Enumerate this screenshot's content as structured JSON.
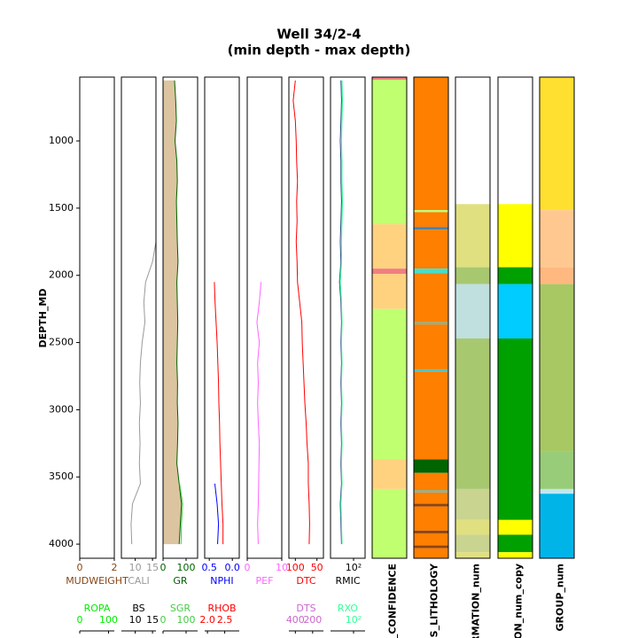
{
  "chart_data": {
    "type": "well_log",
    "title": "Well 34/2-4",
    "subtitle": "(min depth - max depth)",
    "ylabel": "DEPTH_MD",
    "ylim": [
      525,
      4105
    ],
    "yticks": [
      1000,
      1500,
      2000,
      2500,
      3000,
      3500,
      4000
    ],
    "depths": [
      550,
      700,
      850,
      1000,
      1150,
      1300,
      1450,
      1600,
      1750,
      1900,
      2050,
      2200,
      2350,
      2500,
      2650,
      2800,
      2950,
      3100,
      3250,
      3400,
      3550,
      3700,
      3850,
      4000
    ],
    "tracks": [
      {
        "curves": [
          {
            "name": "MUDWEIGHT",
            "color": "#8b4513",
            "xlim": [
              0,
              2
            ],
            "xticks": [
              0,
              2
            ]
          },
          {
            "name": "ROPA",
            "color": "#00ee00",
            "xlim": [
              0,
              120
            ],
            "xticks": [
              0,
              100
            ]
          }
        ]
      },
      {
        "curves": [
          {
            "name": "CALI",
            "color": "#999999",
            "xlim": [
              6,
              16
            ],
            "xticks": [
              10,
              15
            ],
            "values": [
              null,
              16,
              16,
              16,
              16,
              16,
              16,
              16,
              16,
              15,
              13,
              12.5,
              12.8,
              12,
              11.5,
              11.3,
              11.5,
              11.2,
              11.4,
              11.2,
              11.5,
              9.2,
              8.8,
              9
            ]
          },
          {
            "name": "BS",
            "color": "#000000",
            "xlim": [
              6,
              16
            ],
            "xticks": [
              10,
              15
            ]
          }
        ]
      },
      {
        "curves": [
          {
            "name": "GR",
            "color": "#006400",
            "xlim": [
              0,
              150
            ],
            "xticks": [
              0,
              100
            ],
            "fill": "#dcc4a0",
            "values": [
              50,
              55,
              58,
              52,
              60,
              62,
              58,
              60,
              62,
              65,
              60,
              62,
              64,
              62,
              60,
              63,
              62,
              65,
              63,
              60,
              70,
              80,
              75,
              70
            ]
          },
          {
            "name": "SGR",
            "color": "#44cc44",
            "xlim": [
              0,
              150
            ],
            "xticks": [
              0,
              100
            ],
            "values": [
              null,
              null,
              null,
              null,
              null,
              null,
              null,
              null,
              null,
              null,
              null,
              null,
              null,
              null,
              null,
              null,
              null,
              null,
              null,
              null,
              72,
              85,
              80,
              78
            ]
          }
        ]
      },
      {
        "curves": [
          {
            "name": "NPHI",
            "color": "#0000ff",
            "xlim": [
              0.6,
              -0.15
            ],
            "xticks": [
              0.5,
              {
                "value": 0,
                "label": "0.0"
              }
            ],
            "values": [
              null,
              null,
              null,
              null,
              null,
              null,
              null,
              null,
              null,
              null,
              null,
              null,
              null,
              null,
              null,
              null,
              null,
              null,
              null,
              null,
              0.38,
              0.33,
              0.3,
              0.32
            ]
          },
          {
            "name": "RHOB",
            "color": "#ff0000",
            "xlim": [
              1.92,
              2.92
            ],
            "xticks": [
              {
                "value": 2,
                "label": "2.0"
              },
              2.5
            ],
            "values": [
              null,
              null,
              null,
              null,
              null,
              null,
              null,
              null,
              null,
              null,
              2.2,
              2.22,
              2.25,
              2.28,
              2.3,
              2.32,
              2.33,
              2.35,
              2.36,
              2.38,
              2.4,
              2.42,
              2.45,
              2.45
            ]
          }
        ]
      },
      {
        "curves": [
          {
            "name": "PEF",
            "color": "#ff66ff",
            "xlim": [
              0,
              10
            ],
            "xticks": [
              0,
              10
            ],
            "values": [
              null,
              null,
              null,
              null,
              null,
              null,
              null,
              null,
              null,
              null,
              4,
              3.5,
              2.8,
              3.5,
              3,
              3.2,
              3,
              3.2,
              3.5,
              3.4,
              3.3,
              3.2,
              3,
              3.2
            ]
          }
        ]
      },
      {
        "curves": [
          {
            "name": "DTC",
            "color": "#ff0000",
            "xlim": [
              115,
              35
            ],
            "xticks": [
              100,
              50
            ],
            "values": [
              100,
              105,
              100,
              98,
              97,
              95,
              97,
              96,
              98,
              96,
              95,
              90,
              85,
              84,
              82,
              80,
              78,
              75,
              73,
              70,
              70,
              68,
              67,
              68
            ]
          },
          {
            "name": "DTS",
            "color": "#cc66cc",
            "xlim": [
              475,
              75
            ],
            "xticks": [
              400,
              200
            ]
          }
        ]
      },
      {
        "curves": [
          {
            "name": "RMIC",
            "color": "#000000",
            "line_color": "#1f4e79",
            "xlim": [
              1,
              1000
            ],
            "xscale": "log",
            "xticks": [
              {
                "value": 100,
                "label": "10²"
              }
            ],
            "values": [
              8,
              9,
              8,
              7,
              8,
              8,
              9,
              8,
              7,
              8,
              6,
              8,
              9,
              8,
              9,
              8,
              9,
              8,
              9,
              8,
              9,
              7,
              8,
              9
            ]
          },
          {
            "name": "RXO",
            "color": "#33ff99",
            "xlim": [
              1,
              1000
            ],
            "xscale": "log",
            "xticks": [
              {
                "value": 100,
                "label": "10²"
              }
            ],
            "values": [
              10,
              11,
              10,
              9,
              10,
              10,
              11,
              10,
              9,
              9,
              7,
              9,
              10,
              9,
              10,
              9,
              10,
              9,
              10,
              9,
              10,
              8,
              9,
              10
            ]
          }
        ]
      },
      {
        "label": "S_CONFIDENCE",
        "intervals": [
          {
            "top": 525,
            "base": 545,
            "color": "#f08080"
          },
          {
            "top": 545,
            "base": 1620,
            "color": "#c0ff70"
          },
          {
            "top": 1620,
            "base": 1950,
            "color": "#ffd27f"
          },
          {
            "top": 1950,
            "base": 1990,
            "color": "#f08080"
          },
          {
            "top": 1990,
            "base": 2250,
            "color": "#ffd27f"
          },
          {
            "top": 2250,
            "base": 3370,
            "color": "#c0ff70"
          },
          {
            "top": 3370,
            "base": 3590,
            "color": "#ffd27f"
          },
          {
            "top": 3590,
            "base": 4105,
            "color": "#c0ff70"
          }
        ]
      },
      {
        "label": "ES_LITHOLOGY",
        "intervals": [
          {
            "top": 525,
            "base": 1515,
            "color": "#ff7f00"
          },
          {
            "top": 1515,
            "base": 1530,
            "color": "#c0ff70"
          },
          {
            "top": 1530,
            "base": 1640,
            "color": "#ff7f00"
          },
          {
            "top": 1640,
            "base": 1660,
            "color": "#4682b4"
          },
          {
            "top": 1660,
            "base": 1950,
            "color": "#ff7f00"
          },
          {
            "top": 1950,
            "base": 1985,
            "color": "#40e0d0"
          },
          {
            "top": 1985,
            "base": 2350,
            "color": "#ff7f00"
          },
          {
            "top": 2350,
            "base": 2365,
            "color": "#5fbfbf"
          },
          {
            "top": 2365,
            "base": 2700,
            "color": "#ff7f00"
          },
          {
            "top": 2700,
            "base": 2715,
            "color": "#5fbfbf"
          },
          {
            "top": 2715,
            "base": 3370,
            "color": "#ff7f00"
          },
          {
            "top": 3370,
            "base": 3470,
            "color": "#006400"
          },
          {
            "top": 3470,
            "base": 3600,
            "color": "#ff7f00"
          },
          {
            "top": 3600,
            "base": 3615,
            "color": "#5fbfbf"
          },
          {
            "top": 3615,
            "base": 3700,
            "color": "#ff7f00"
          },
          {
            "top": 3700,
            "base": 3720,
            "color": "#8b4513"
          },
          {
            "top": 3720,
            "base": 3900,
            "color": "#ff7f00"
          },
          {
            "top": 3900,
            "base": 3920,
            "color": "#8b4513"
          },
          {
            "top": 3920,
            "base": 4010,
            "color": "#ff7f00"
          },
          {
            "top": 4010,
            "base": 4030,
            "color": "#8b4513"
          },
          {
            "top": 4030,
            "base": 4105,
            "color": "#ff7f00"
          }
        ]
      },
      {
        "label": "RMATION_num",
        "intervals": [
          {
            "top": 525,
            "base": 1470,
            "color": "#ffffff"
          },
          {
            "top": 1470,
            "base": 1940,
            "color": "#e0e080"
          },
          {
            "top": 1940,
            "base": 2065,
            "color": "#a8c870"
          },
          {
            "top": 2065,
            "base": 2470,
            "color": "#c0e0e0"
          },
          {
            "top": 2470,
            "base": 3590,
            "color": "#a8c870"
          },
          {
            "top": 3590,
            "base": 3820,
            "color": "#c8d490"
          },
          {
            "top": 3820,
            "base": 3930,
            "color": "#e0e080"
          },
          {
            "top": 3930,
            "base": 4060,
            "color": "#c8d490"
          },
          {
            "top": 4060,
            "base": 4105,
            "color": "#e0e080"
          }
        ]
      },
      {
        "label": "TION_num_copy",
        "intervals": [
          {
            "top": 525,
            "base": 1470,
            "color": "#ffffff"
          },
          {
            "top": 1470,
            "base": 1940,
            "color": "#ffff00"
          },
          {
            "top": 1940,
            "base": 2065,
            "color": "#00a000"
          },
          {
            "top": 2065,
            "base": 2470,
            "color": "#00ccff"
          },
          {
            "top": 2470,
            "base": 3820,
            "color": "#00a000"
          },
          {
            "top": 3820,
            "base": 3930,
            "color": "#ffff00"
          },
          {
            "top": 3930,
            "base": 4060,
            "color": "#00a000"
          },
          {
            "top": 4060,
            "base": 4105,
            "color": "#ffff00"
          }
        ]
      },
      {
        "label": "GROUP_num",
        "intervals": [
          {
            "top": 525,
            "base": 1515,
            "color": "#ffe030"
          },
          {
            "top": 1515,
            "base": 1940,
            "color": "#ffc890"
          },
          {
            "top": 1940,
            "base": 2065,
            "color": "#ffb880"
          },
          {
            "top": 2065,
            "base": 3310,
            "color": "#a8c864"
          },
          {
            "top": 3310,
            "base": 3590,
            "color": "#98cc78"
          },
          {
            "top": 3590,
            "base": 3625,
            "color": "#c0e8f0"
          },
          {
            "top": 3625,
            "base": 4105,
            "color": "#00b4e8"
          }
        ]
      }
    ]
  }
}
